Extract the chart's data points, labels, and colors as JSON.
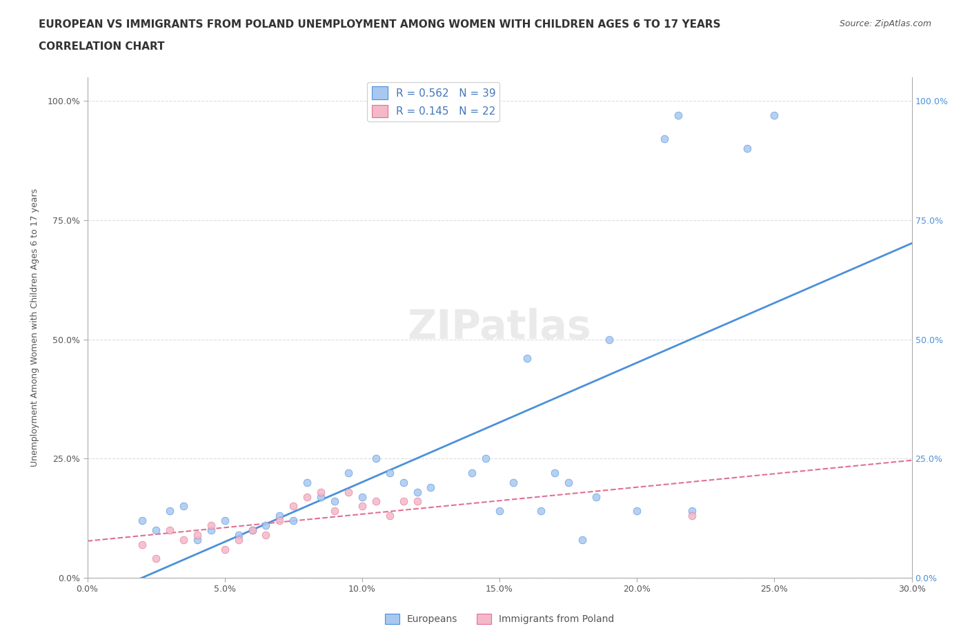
{
  "title_line1": "EUROPEAN VS IMMIGRANTS FROM POLAND UNEMPLOYMENT AMONG WOMEN WITH CHILDREN AGES 6 TO 17 YEARS",
  "title_line2": "CORRELATION CHART",
  "source": "Source: ZipAtlas.com",
  "xlabel": "",
  "ylabel": "Unemployment Among Women with Children Ages 6 to 17 years",
  "xlim": [
    0.0,
    0.3
  ],
  "ylim": [
    0.0,
    1.05
  ],
  "x_tick_labels": [
    "0.0%",
    "5.0%",
    "10.0%",
    "15.0%",
    "20.0%",
    "25.0%",
    "30.0%"
  ],
  "y_tick_labels": [
    "0.0%",
    "25.0%",
    "50.0%",
    "75.0%",
    "100.0%"
  ],
  "y_tick_positions": [
    0.0,
    0.25,
    0.5,
    0.75,
    1.0
  ],
  "europeans_x": [
    0.02,
    0.025,
    0.03,
    0.035,
    0.04,
    0.045,
    0.05,
    0.055,
    0.06,
    0.065,
    0.07,
    0.075,
    0.08,
    0.085,
    0.09,
    0.095,
    0.1,
    0.105,
    0.11,
    0.115,
    0.12,
    0.125,
    0.14,
    0.145,
    0.15,
    0.155,
    0.16,
    0.165,
    0.17,
    0.175,
    0.18,
    0.185,
    0.19,
    0.2,
    0.21,
    0.215,
    0.22,
    0.24,
    0.25
  ],
  "europeans_y": [
    0.12,
    0.1,
    0.14,
    0.15,
    0.08,
    0.1,
    0.12,
    0.09,
    0.1,
    0.11,
    0.13,
    0.12,
    0.2,
    0.17,
    0.16,
    0.22,
    0.17,
    0.25,
    0.22,
    0.2,
    0.18,
    0.19,
    0.22,
    0.25,
    0.14,
    0.2,
    0.46,
    0.14,
    0.22,
    0.2,
    0.08,
    0.17,
    0.5,
    0.14,
    0.92,
    0.97,
    0.14,
    0.9,
    0.97
  ],
  "poland_x": [
    0.02,
    0.025,
    0.03,
    0.035,
    0.04,
    0.045,
    0.05,
    0.055,
    0.06,
    0.065,
    0.07,
    0.075,
    0.08,
    0.085,
    0.09,
    0.095,
    0.1,
    0.105,
    0.11,
    0.115,
    0.12,
    0.22
  ],
  "poland_y": [
    0.07,
    0.04,
    0.1,
    0.08,
    0.09,
    0.11,
    0.06,
    0.08,
    0.1,
    0.09,
    0.12,
    0.15,
    0.17,
    0.18,
    0.14,
    0.18,
    0.15,
    0.16,
    0.13,
    0.16,
    0.16,
    0.13
  ],
  "R_european": 0.562,
  "N_european": 39,
  "R_poland": 0.145,
  "N_poland": 22,
  "color_european": "#a8c8f0",
  "color_poland": "#f4b8c8",
  "trendline_european_color": "#4a90d9",
  "trendline_poland_color": "#e07090",
  "background_color": "#ffffff",
  "grid_color": "#dddddd",
  "watermark": "ZIPatlas",
  "legend_R_color": "#4477bb",
  "legend_N_color": "#336699"
}
